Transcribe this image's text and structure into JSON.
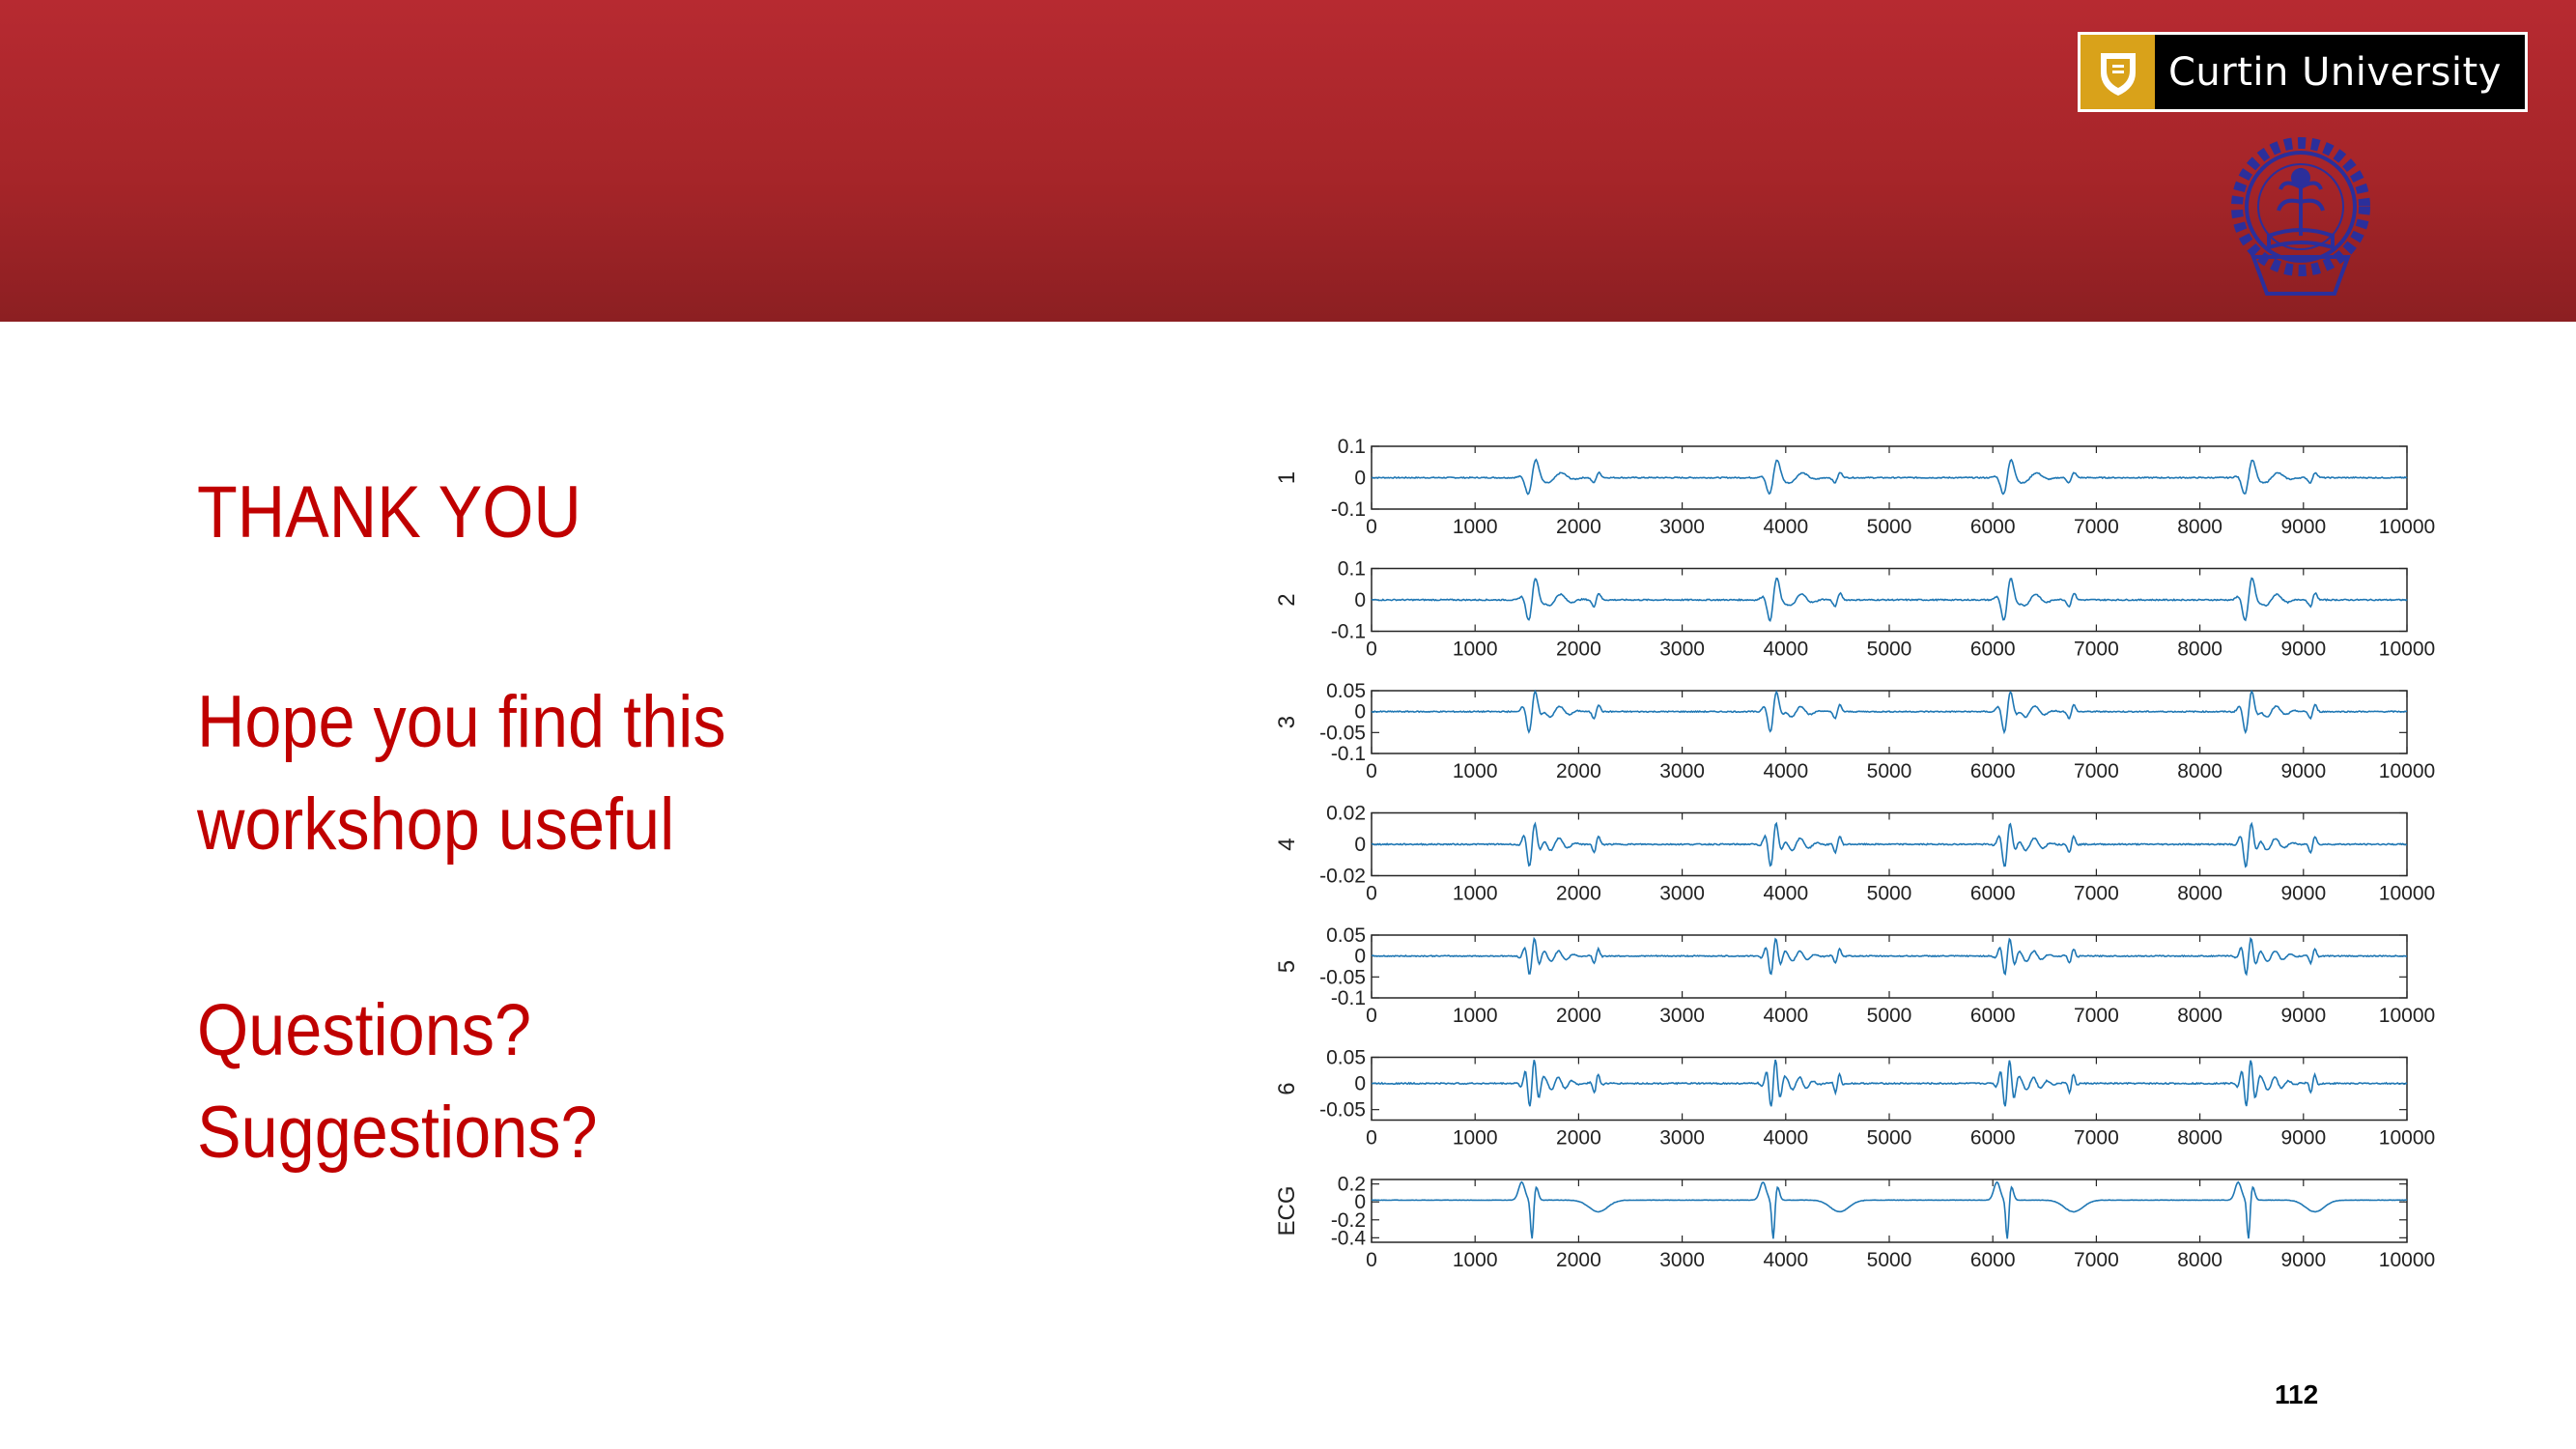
{
  "slide": {
    "title": "THANK YOU",
    "line1": "Hope you find this",
    "line2": "workshop useful",
    "line3": "Questions?",
    "line4": "Suggestions?",
    "page_number": "112"
  },
  "logos": {
    "curtin_name": "Curtin University",
    "curtin_gold": "#d9a21a",
    "seal_color": "#2b2f9b"
  },
  "colors": {
    "banner": "#b72a31",
    "text_red": "#c00000",
    "line_blue": "#1f77b4"
  },
  "chart_data": {
    "type": "line",
    "x_range": [
      0,
      10000
    ],
    "x_ticks": [
      0,
      1000,
      2000,
      3000,
      4000,
      5000,
      6000,
      7000,
      8000,
      9000,
      10000
    ],
    "grid": false,
    "beats": [
      1550,
      3880,
      6140,
      8470
    ],
    "panels": [
      {
        "ylabel": "1",
        "ylim": [
          -0.1,
          0.1
        ],
        "yticks": [
          "0.1",
          "0",
          "-0.1"
        ],
        "peak": 0.07,
        "kind": "wavelet"
      },
      {
        "ylabel": "2",
        "ylim": [
          -0.1,
          0.1
        ],
        "yticks": [
          "0.1",
          "0",
          "-0.1"
        ],
        "peak": 0.08,
        "kind": "wavelet"
      },
      {
        "ylabel": "3",
        "ylim": [
          -0.1,
          0.05
        ],
        "yticks": [
          "0.05",
          "0",
          "-0.05",
          "-0.1"
        ],
        "peak": 0.055,
        "kind": "wavelet"
      },
      {
        "ylabel": "4",
        "ylim": [
          -0.02,
          0.02
        ],
        "yticks": [
          "0.02",
          "0",
          "-0.02"
        ],
        "peak": 0.016,
        "kind": "wavelet"
      },
      {
        "ylabel": "5",
        "ylim": [
          -0.1,
          0.05
        ],
        "yticks": [
          "0.05",
          "0",
          "-0.05",
          "-0.1"
        ],
        "peak": 0.05,
        "kind": "wavelet"
      },
      {
        "ylabel": "6",
        "ylim": [
          -0.07,
          0.05
        ],
        "yticks": [
          "0.05",
          "0",
          "-0.05"
        ],
        "peak": 0.05,
        "kind": "wavelet"
      },
      {
        "ylabel": "ECG",
        "ylim": [
          -0.45,
          0.25
        ],
        "yticks": [
          "0.2",
          "0",
          "-0.2",
          "-0.4"
        ],
        "peak": 0.45,
        "kind": "ecg"
      }
    ]
  }
}
